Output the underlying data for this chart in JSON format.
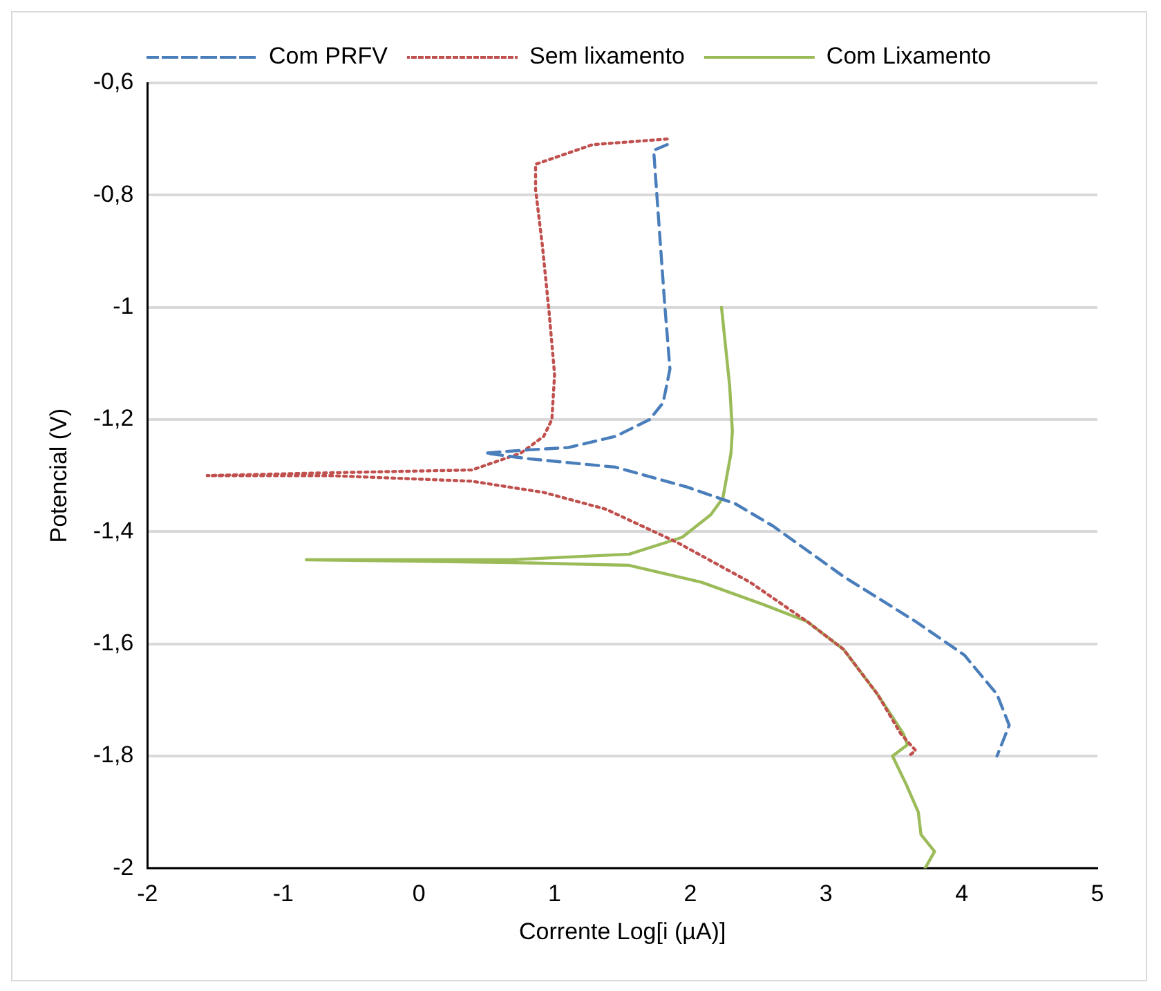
{
  "chart_data": {
    "type": "line",
    "xlabel": "Corrente Log[i (µA)]",
    "ylabel": "Potencial (V)",
    "xlim": [
      -2,
      5
    ],
    "xticks": [
      -2,
      -1,
      0,
      1,
      2,
      3,
      4,
      5
    ],
    "ylim": [
      -2,
      -0.6
    ],
    "yticks": [
      {
        "value": -0.6,
        "label": "-0,6"
      },
      {
        "value": -0.8,
        "label": "-0,8"
      },
      {
        "value": -1,
        "label": "-1"
      },
      {
        "value": -1.2,
        "label": "-1,2"
      },
      {
        "value": -1.4,
        "label": "-1,4"
      },
      {
        "value": -1.6,
        "label": "-1,6"
      },
      {
        "value": -1.8,
        "label": "-1,8"
      },
      {
        "value": -2,
        "label": "-2"
      }
    ],
    "grid": "y",
    "legend": "top",
    "marker": "none",
    "series": [
      {
        "name": "Com PRFV",
        "color": "#4a7ebb",
        "line_style": "dashed",
        "x": [
          1.83,
          1.73,
          1.81,
          1.85,
          1.8,
          1.7,
          1.45,
          1.1,
          0.75,
          0.49,
          0.81,
          1.45,
          1.97,
          2.33,
          2.61,
          3.13,
          3.66,
          4.02,
          4.26,
          4.35,
          4.26
        ],
        "values": [
          -0.71,
          -0.72,
          -0.99,
          -1.11,
          -1.17,
          -1.2,
          -1.23,
          -1.25,
          -1.255,
          -1.26,
          -1.27,
          -1.285,
          -1.32,
          -1.35,
          -1.39,
          -1.48,
          -1.56,
          -1.62,
          -1.69,
          -1.745,
          -1.8
        ]
      },
      {
        "name": "Sem lixamento",
        "color": "#c0504d",
        "line_style": "dotted",
        "x": [
          1.83,
          1.28,
          0.86,
          0.86,
          0.91,
          0.96,
          1,
          0.98,
          0.92,
          0.75,
          0.39,
          -0.66,
          -1.56,
          -0.66,
          0.39,
          0.92,
          1.38,
          1.91,
          2.44,
          2.86,
          3.13,
          3.38,
          3.55,
          3.66,
          3.61
        ],
        "values": [
          -0.7,
          -0.71,
          -0.745,
          -0.79,
          -0.89,
          -1.01,
          -1.12,
          -1.2,
          -1.23,
          -1.26,
          -1.29,
          -1.295,
          -1.3,
          -1.3,
          -1.31,
          -1.33,
          -1.36,
          -1.42,
          -1.49,
          -1.56,
          -1.61,
          -1.69,
          -1.76,
          -1.79,
          -1.8
        ]
      },
      {
        "name": "Com Lixamento",
        "color": "#9bbb59",
        "line_style": "solid",
        "x": [
          2.23,
          2.29,
          2.31,
          2.3,
          2.24,
          2.15,
          1.94,
          1.55,
          0.68,
          -0.83,
          0.68,
          1.55,
          2.08,
          2.54,
          2.86,
          3.13,
          3.38,
          3.57,
          3.6,
          3.49,
          3.59,
          3.68,
          3.7,
          3.8,
          3.73
        ],
        "values": [
          -1,
          -1.14,
          -1.22,
          -1.26,
          -1.34,
          -1.37,
          -1.41,
          -1.44,
          -1.45,
          -1.45,
          -1.455,
          -1.46,
          -1.49,
          -1.53,
          -1.56,
          -1.61,
          -1.69,
          -1.76,
          -1.78,
          -1.8,
          -1.85,
          -1.9,
          -1.94,
          -1.97,
          -2
        ]
      }
    ]
  }
}
